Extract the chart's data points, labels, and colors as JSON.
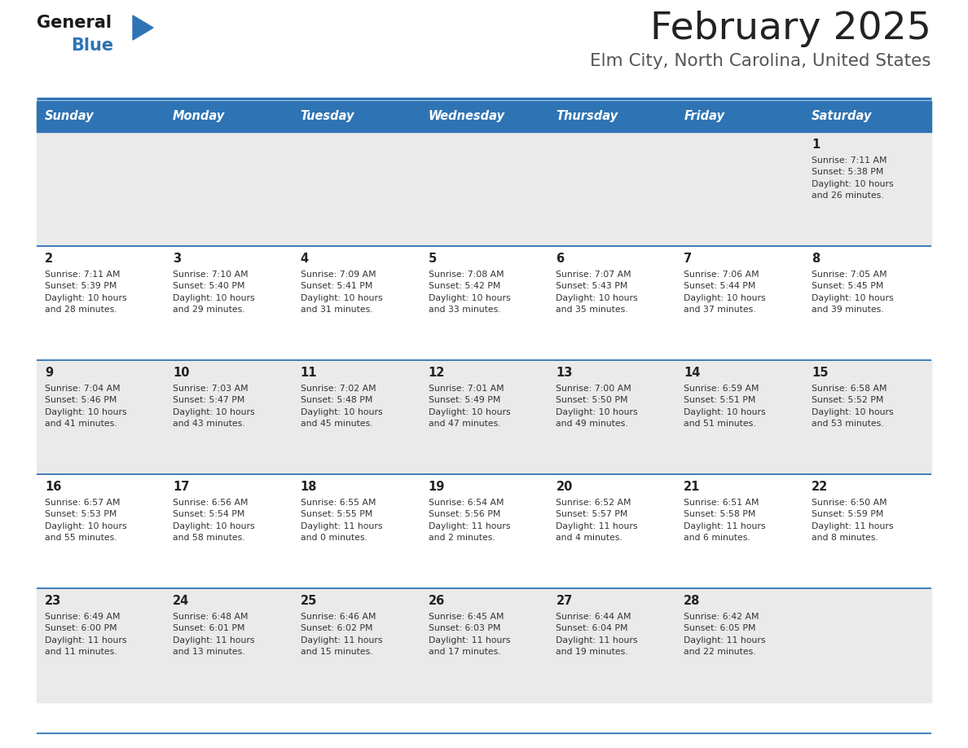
{
  "title": "February 2025",
  "subtitle": "Elm City, North Carolina, United States",
  "header_bg": "#2E74B5",
  "header_text_color": "#FFFFFF",
  "day_names": [
    "Sunday",
    "Monday",
    "Tuesday",
    "Wednesday",
    "Thursday",
    "Friday",
    "Saturday"
  ],
  "row_bg_odd": "#EAEAEA",
  "row_bg_even": "#FFFFFF",
  "border_color": "#2E74B5",
  "title_color": "#222222",
  "subtitle_color": "#555555",
  "day_num_color": "#222222",
  "cell_text_color": "#333333",
  "logo_general_color": "#1a1a1a",
  "logo_blue_color": "#2E74B5",
  "fig_width": 11.88,
  "fig_height": 9.18,
  "weeks": [
    [
      {
        "day": "",
        "info": ""
      },
      {
        "day": "",
        "info": ""
      },
      {
        "day": "",
        "info": ""
      },
      {
        "day": "",
        "info": ""
      },
      {
        "day": "",
        "info": ""
      },
      {
        "day": "",
        "info": ""
      },
      {
        "day": "1",
        "info": "Sunrise: 7:11 AM\nSunset: 5:38 PM\nDaylight: 10 hours\nand 26 minutes."
      }
    ],
    [
      {
        "day": "2",
        "info": "Sunrise: 7:11 AM\nSunset: 5:39 PM\nDaylight: 10 hours\nand 28 minutes."
      },
      {
        "day": "3",
        "info": "Sunrise: 7:10 AM\nSunset: 5:40 PM\nDaylight: 10 hours\nand 29 minutes."
      },
      {
        "day": "4",
        "info": "Sunrise: 7:09 AM\nSunset: 5:41 PM\nDaylight: 10 hours\nand 31 minutes."
      },
      {
        "day": "5",
        "info": "Sunrise: 7:08 AM\nSunset: 5:42 PM\nDaylight: 10 hours\nand 33 minutes."
      },
      {
        "day": "6",
        "info": "Sunrise: 7:07 AM\nSunset: 5:43 PM\nDaylight: 10 hours\nand 35 minutes."
      },
      {
        "day": "7",
        "info": "Sunrise: 7:06 AM\nSunset: 5:44 PM\nDaylight: 10 hours\nand 37 minutes."
      },
      {
        "day": "8",
        "info": "Sunrise: 7:05 AM\nSunset: 5:45 PM\nDaylight: 10 hours\nand 39 minutes."
      }
    ],
    [
      {
        "day": "9",
        "info": "Sunrise: 7:04 AM\nSunset: 5:46 PM\nDaylight: 10 hours\nand 41 minutes."
      },
      {
        "day": "10",
        "info": "Sunrise: 7:03 AM\nSunset: 5:47 PM\nDaylight: 10 hours\nand 43 minutes."
      },
      {
        "day": "11",
        "info": "Sunrise: 7:02 AM\nSunset: 5:48 PM\nDaylight: 10 hours\nand 45 minutes."
      },
      {
        "day": "12",
        "info": "Sunrise: 7:01 AM\nSunset: 5:49 PM\nDaylight: 10 hours\nand 47 minutes."
      },
      {
        "day": "13",
        "info": "Sunrise: 7:00 AM\nSunset: 5:50 PM\nDaylight: 10 hours\nand 49 minutes."
      },
      {
        "day": "14",
        "info": "Sunrise: 6:59 AM\nSunset: 5:51 PM\nDaylight: 10 hours\nand 51 minutes."
      },
      {
        "day": "15",
        "info": "Sunrise: 6:58 AM\nSunset: 5:52 PM\nDaylight: 10 hours\nand 53 minutes."
      }
    ],
    [
      {
        "day": "16",
        "info": "Sunrise: 6:57 AM\nSunset: 5:53 PM\nDaylight: 10 hours\nand 55 minutes."
      },
      {
        "day": "17",
        "info": "Sunrise: 6:56 AM\nSunset: 5:54 PM\nDaylight: 10 hours\nand 58 minutes."
      },
      {
        "day": "18",
        "info": "Sunrise: 6:55 AM\nSunset: 5:55 PM\nDaylight: 11 hours\nand 0 minutes."
      },
      {
        "day": "19",
        "info": "Sunrise: 6:54 AM\nSunset: 5:56 PM\nDaylight: 11 hours\nand 2 minutes."
      },
      {
        "day": "20",
        "info": "Sunrise: 6:52 AM\nSunset: 5:57 PM\nDaylight: 11 hours\nand 4 minutes."
      },
      {
        "day": "21",
        "info": "Sunrise: 6:51 AM\nSunset: 5:58 PM\nDaylight: 11 hours\nand 6 minutes."
      },
      {
        "day": "22",
        "info": "Sunrise: 6:50 AM\nSunset: 5:59 PM\nDaylight: 11 hours\nand 8 minutes."
      }
    ],
    [
      {
        "day": "23",
        "info": "Sunrise: 6:49 AM\nSunset: 6:00 PM\nDaylight: 11 hours\nand 11 minutes."
      },
      {
        "day": "24",
        "info": "Sunrise: 6:48 AM\nSunset: 6:01 PM\nDaylight: 11 hours\nand 13 minutes."
      },
      {
        "day": "25",
        "info": "Sunrise: 6:46 AM\nSunset: 6:02 PM\nDaylight: 11 hours\nand 15 minutes."
      },
      {
        "day": "26",
        "info": "Sunrise: 6:45 AM\nSunset: 6:03 PM\nDaylight: 11 hours\nand 17 minutes."
      },
      {
        "day": "27",
        "info": "Sunrise: 6:44 AM\nSunset: 6:04 PM\nDaylight: 11 hours\nand 19 minutes."
      },
      {
        "day": "28",
        "info": "Sunrise: 6:42 AM\nSunset: 6:05 PM\nDaylight: 11 hours\nand 22 minutes."
      },
      {
        "day": "",
        "info": ""
      }
    ]
  ]
}
